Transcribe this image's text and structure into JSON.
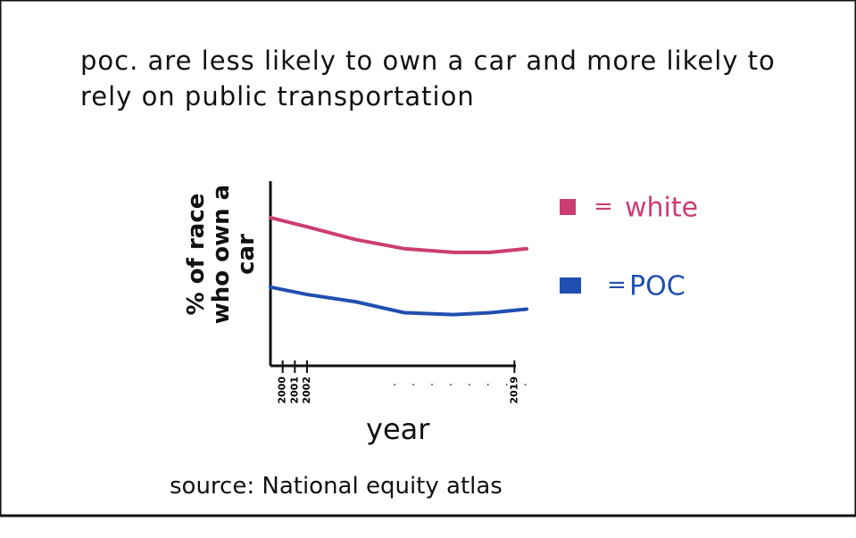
{
  "chart_data": {
    "type": "line",
    "title": "poc. are less likely to own a car and more likely to rely on public transportation",
    "y_label": "% of race who own a car",
    "x_label": "year",
    "source": "source: National equity atlas",
    "x": [
      1999,
      2002,
      2006,
      2010,
      2014,
      2017,
      2020
    ],
    "xlim": [
      1999,
      2020
    ],
    "xticks": [
      2000,
      2001,
      2002,
      2019
    ],
    "ylim": [
      0,
      100
    ],
    "series": [
      {
        "name": "white",
        "color": "#cc3d72",
        "values": [
          81,
          76,
          69,
          64,
          62,
          62,
          64
        ]
      },
      {
        "name": "POC",
        "color": "#1f4fb0",
        "values": [
          43,
          39,
          35,
          29,
          28,
          29,
          31
        ]
      }
    ]
  }
}
